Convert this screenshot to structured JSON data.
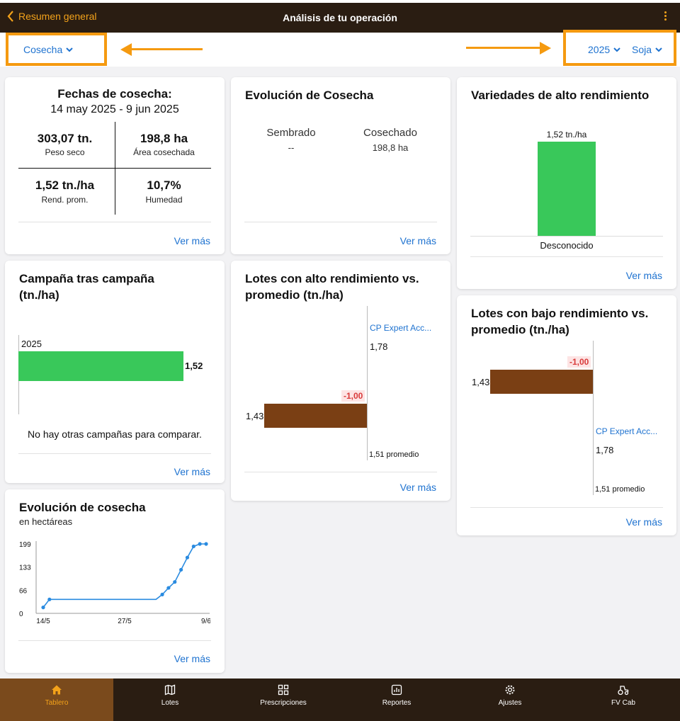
{
  "header": {
    "back_label": "Resumen general",
    "title": "Análisis de tu operación"
  },
  "filters": {
    "activity": "Cosecha",
    "year": "2025",
    "crop": "Soja"
  },
  "colors": {
    "accent": "#f3a21a",
    "link": "#1f73d0",
    "green": "#39c85a",
    "brown": "#7a3f14",
    "negative": "#d93a3a"
  },
  "fechas": {
    "title": "Fechas de cosecha:",
    "range": "14 may 2025 - 9 jun 2025",
    "stats": [
      {
        "value": "303,07 tn.",
        "label": "Peso seco"
      },
      {
        "value": "198,8 ha",
        "label": "Área cosechada"
      },
      {
        "value": "1,52 tn./ha",
        "label": "Rend. prom."
      },
      {
        "value": "10,7%",
        "label": "Humedad"
      }
    ],
    "link": "Ver más"
  },
  "evolucion_cosecha": {
    "title": "Evolución de Cosecha",
    "sembrado_label": "Sembrado",
    "sembrado_value": "--",
    "cosechado_label": "Cosechado",
    "cosechado_value": "198,8 ha",
    "link": "Ver más"
  },
  "variedades": {
    "title": "Variedades de alto rendimiento",
    "value_label": "1,52 tn./ha",
    "category": "Desconocido",
    "value": 1.52,
    "link": "Ver más"
  },
  "campana": {
    "title": "Campaña tras campaña (tn./ha)",
    "year": "2025",
    "value_label": "1,52",
    "value": 1.52,
    "note": "No hay otras campañas para comparar.",
    "link": "Ver más"
  },
  "alto": {
    "title": "Lotes con alto rendimiento vs. promedio (tn./ha)",
    "lote_name": "CP Expert Acc...",
    "lote_value": "1,78",
    "bar_value": "1,43",
    "diff": "-1,00",
    "avg_label": "1,51 promedio",
    "link": "Ver más"
  },
  "bajo": {
    "title": "Lotes con bajo rendimiento vs. promedio (tn./ha)",
    "lote_name": "CP Expert Acc...",
    "lote_value": "1,78",
    "bar_value": "1,43",
    "diff": "-1,00",
    "avg_label": "1,51 promedio",
    "link": "Ver más"
  },
  "evolucion_ha": {
    "title": "Evolución de cosecha",
    "subtitle": "en hectáreas",
    "link": "Ver más",
    "chart_data": {
      "type": "line",
      "ylabel": "",
      "xlabel": "",
      "yticks": [
        "199",
        "133",
        "66",
        "0"
      ],
      "xticks": [
        "14/5",
        "27/5",
        "9/6"
      ],
      "ylim": [
        0,
        199
      ],
      "x": [
        "14/5",
        "15/5",
        "1/6",
        "2/6",
        "3/6",
        "4/6",
        "5/6",
        "6/6",
        "7/6",
        "8/6",
        "9/6"
      ],
      "values": [
        17,
        40,
        40,
        54,
        73,
        90,
        125,
        160,
        192,
        199,
        199
      ]
    }
  },
  "nav": [
    {
      "label": "Tablero",
      "icon": "home-icon",
      "active": true
    },
    {
      "label": "Lotes",
      "icon": "map-icon",
      "active": false
    },
    {
      "label": "Prescripciones",
      "icon": "grid-icon",
      "active": false
    },
    {
      "label": "Reportes",
      "icon": "report-icon",
      "active": false
    },
    {
      "label": "Ajustes",
      "icon": "gear-icon",
      "active": false
    },
    {
      "label": "FV Cab",
      "icon": "tractor-icon",
      "active": false
    }
  ]
}
